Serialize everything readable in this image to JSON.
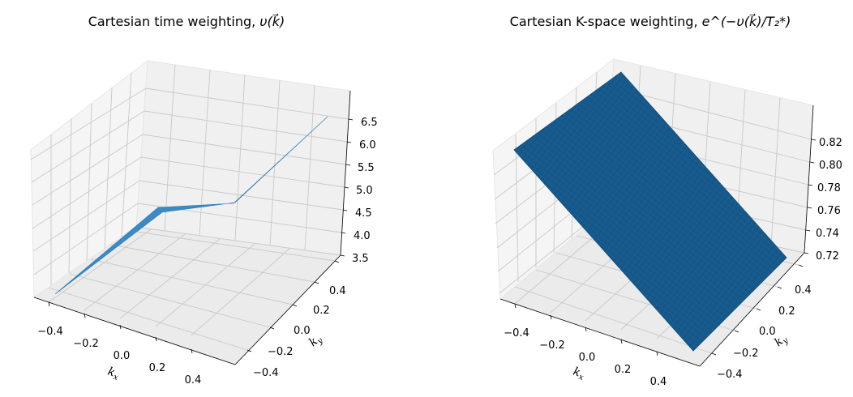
{
  "chart_data": [
    {
      "type": "surface3d",
      "title_prefix": "Cartesian time weighting, ",
      "title_math": "υ(k⃗)",
      "xlabel": "k",
      "xlabel_sub": "x",
      "ylabel": "k",
      "ylabel_sub": "y",
      "x_ticks": [
        "−0.4",
        "−0.2",
        "0.0",
        "0.2",
        "0.4"
      ],
      "y_ticks": [
        "−0.4",
        "−0.2",
        "0.0",
        "0.2",
        "0.4"
      ],
      "z_ticks": [
        "3.5",
        "4.0",
        "4.5",
        "5.0",
        "5.5",
        "6.0",
        "6.5"
      ],
      "xlim": [
        -0.5,
        0.5
      ],
      "ylim": [
        -0.5,
        0.5
      ],
      "zlim": [
        3.5,
        6.6
      ],
      "surface": {
        "corners": [
          {
            "x": -0.5,
            "y": -0.5,
            "z": 3.5
          },
          {
            "x": 0.5,
            "y": -0.5,
            "z": 5.0
          },
          {
            "x": 0.5,
            "y": 0.5,
            "z": 6.6
          },
          {
            "x": -0.5,
            "y": 0.5,
            "z": 5.0
          }
        ]
      },
      "color": "#3b8ac4"
    },
    {
      "type": "surface3d",
      "title_prefix": "Cartesian K-space weighting, ",
      "title_math": "e^(−υ(k⃗)/T₂*)",
      "xlabel": "k",
      "xlabel_sub": "x",
      "ylabel": "k",
      "ylabel_sub": "y",
      "x_ticks": [
        "−0.4",
        "−0.2",
        "0.0",
        "0.2",
        "0.4"
      ],
      "y_ticks": [
        "−0.4",
        "−0.2",
        "0.0",
        "0.2",
        "0.4"
      ],
      "z_ticks": [
        "0.72",
        "0.74",
        "0.76",
        "0.78",
        "0.80",
        "0.82"
      ],
      "xlim": [
        -0.5,
        0.5
      ],
      "ylim": [
        -0.5,
        0.5
      ],
      "zlim": [
        0.715,
        0.84
      ],
      "surface": {
        "corners": [
          {
            "x": -0.5,
            "y": -0.5,
            "z": 0.84
          },
          {
            "x": 0.5,
            "y": -0.5,
            "z": 0.78
          },
          {
            "x": 0.5,
            "y": 0.5,
            "z": 0.72
          },
          {
            "x": -0.5,
            "y": 0.5,
            "z": 0.78
          }
        ]
      },
      "color": "#16578a"
    }
  ]
}
